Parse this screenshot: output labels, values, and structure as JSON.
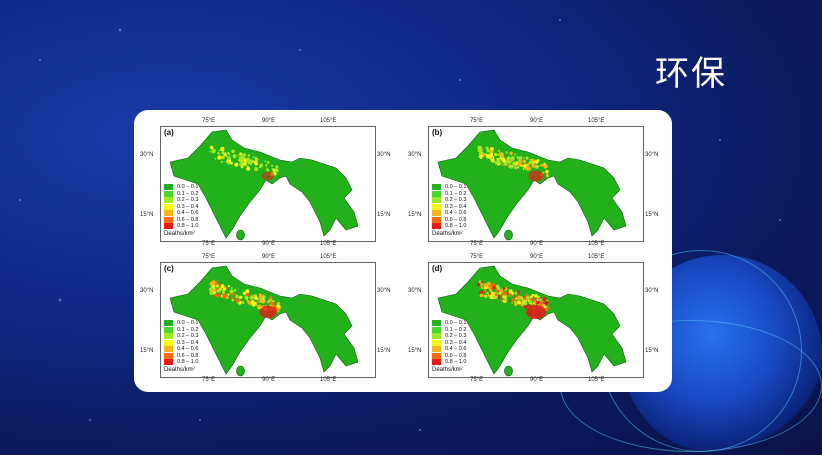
{
  "slide": {
    "title": "环保"
  },
  "figure": {
    "panels": [
      {
        "label": "(a)"
      },
      {
        "label": "(b)"
      },
      {
        "label": "(c)"
      },
      {
        "label": "(d)"
      }
    ],
    "lon_ticks": [
      "75°E",
      "90°E",
      "105°E"
    ],
    "lat_ticks": [
      "30°N",
      "15°N"
    ],
    "legend": {
      "unit": "Deaths/km²",
      "items": [
        {
          "range": "0.0 – 0.1",
          "color": "#22b11a"
        },
        {
          "range": "0.1 – 0.2",
          "color": "#45d62a"
        },
        {
          "range": "0.2 – 0.3",
          "color": "#9ee82a"
        },
        {
          "range": "0.3 – 0.4",
          "color": "#f5f51a"
        },
        {
          "range": "0.4 – 0.6",
          "color": "#f5b41a"
        },
        {
          "range": "0.6 – 0.8",
          "color": "#f56a14"
        },
        {
          "range": "0.8 – 1.0",
          "color": "#e61a1a"
        }
      ]
    }
  }
}
